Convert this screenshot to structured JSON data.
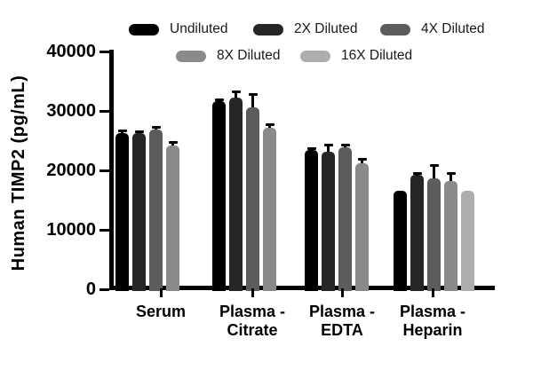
{
  "chart_data": {
    "type": "bar",
    "title": "",
    "ylabel": "Human TIMP2 (pg/mL)",
    "xlabel": "",
    "ylim": [
      0,
      40000
    ],
    "yticks": [
      40000,
      30000,
      20000,
      10000,
      0
    ],
    "grid": false,
    "legend_position": "top",
    "categories": [
      "Serum",
      "Plasma - Citrate",
      "Plasma - EDTA",
      "Plasma - Heparin"
    ],
    "category_label_lines": [
      [
        "Serum"
      ],
      [
        "Plasma -",
        "Citrate"
      ],
      [
        "Plasma -",
        "EDTA"
      ],
      [
        "Plasma -",
        "Heparin"
      ]
    ],
    "series": [
      {
        "name": "Undiluted",
        "color": "#000000",
        "values": [
          26300,
          31600,
          23400,
          16500
        ],
        "errors": [
          300,
          200,
          300,
          null
        ]
      },
      {
        "name": "2X Diluted",
        "color": "#262626",
        "values": [
          26200,
          32300,
          23200,
          19200
        ],
        "errors": [
          300,
          900,
          1000,
          250
        ]
      },
      {
        "name": "4X Diluted",
        "color": "#5c5c5c",
        "values": [
          26800,
          30600,
          23900,
          18700
        ],
        "errors": [
          450,
          2100,
          350,
          2100
        ]
      },
      {
        "name": "8X Diluted",
        "color": "#8a8a8a",
        "values": [
          24200,
          27100,
          21200,
          18200
        ],
        "errors": [
          550,
          650,
          650,
          1300
        ]
      },
      {
        "name": "16X Diluted",
        "color": "#aeaeae",
        "values": [
          null,
          null,
          null,
          16600
        ],
        "errors": [
          null,
          null,
          null,
          null
        ]
      }
    ]
  }
}
